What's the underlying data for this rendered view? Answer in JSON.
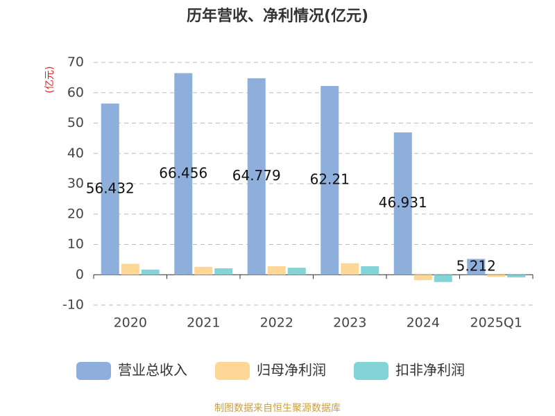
{
  "chart_data": {
    "type": "bar",
    "title": "历年营收、净利情况(亿元)",
    "y_label": "(亿元)",
    "categories": [
      "2020",
      "2021",
      "2022",
      "2023",
      "2024",
      "2025Q1"
    ],
    "series": [
      {
        "name": "营业总收入",
        "color": "#8eaedb",
        "values": [
          56.432,
          66.456,
          64.779,
          62.21,
          46.931,
          5.212
        ]
      },
      {
        "name": "归母净利润",
        "color": "#fdd795",
        "values": [
          3.6,
          2.6,
          2.8,
          3.8,
          -1.8,
          -0.7
        ]
      },
      {
        "name": "扣非净利润",
        "color": "#84d3d6",
        "values": [
          1.7,
          2.1,
          2.3,
          2.8,
          -2.4,
          -0.9
        ]
      }
    ],
    "ylim": [
      -10,
      70
    ],
    "yticks": [
      -10,
      0,
      10,
      20,
      30,
      40,
      50,
      60,
      70
    ],
    "grid": true,
    "source": "制图数据来自恒生聚源数据库"
  }
}
